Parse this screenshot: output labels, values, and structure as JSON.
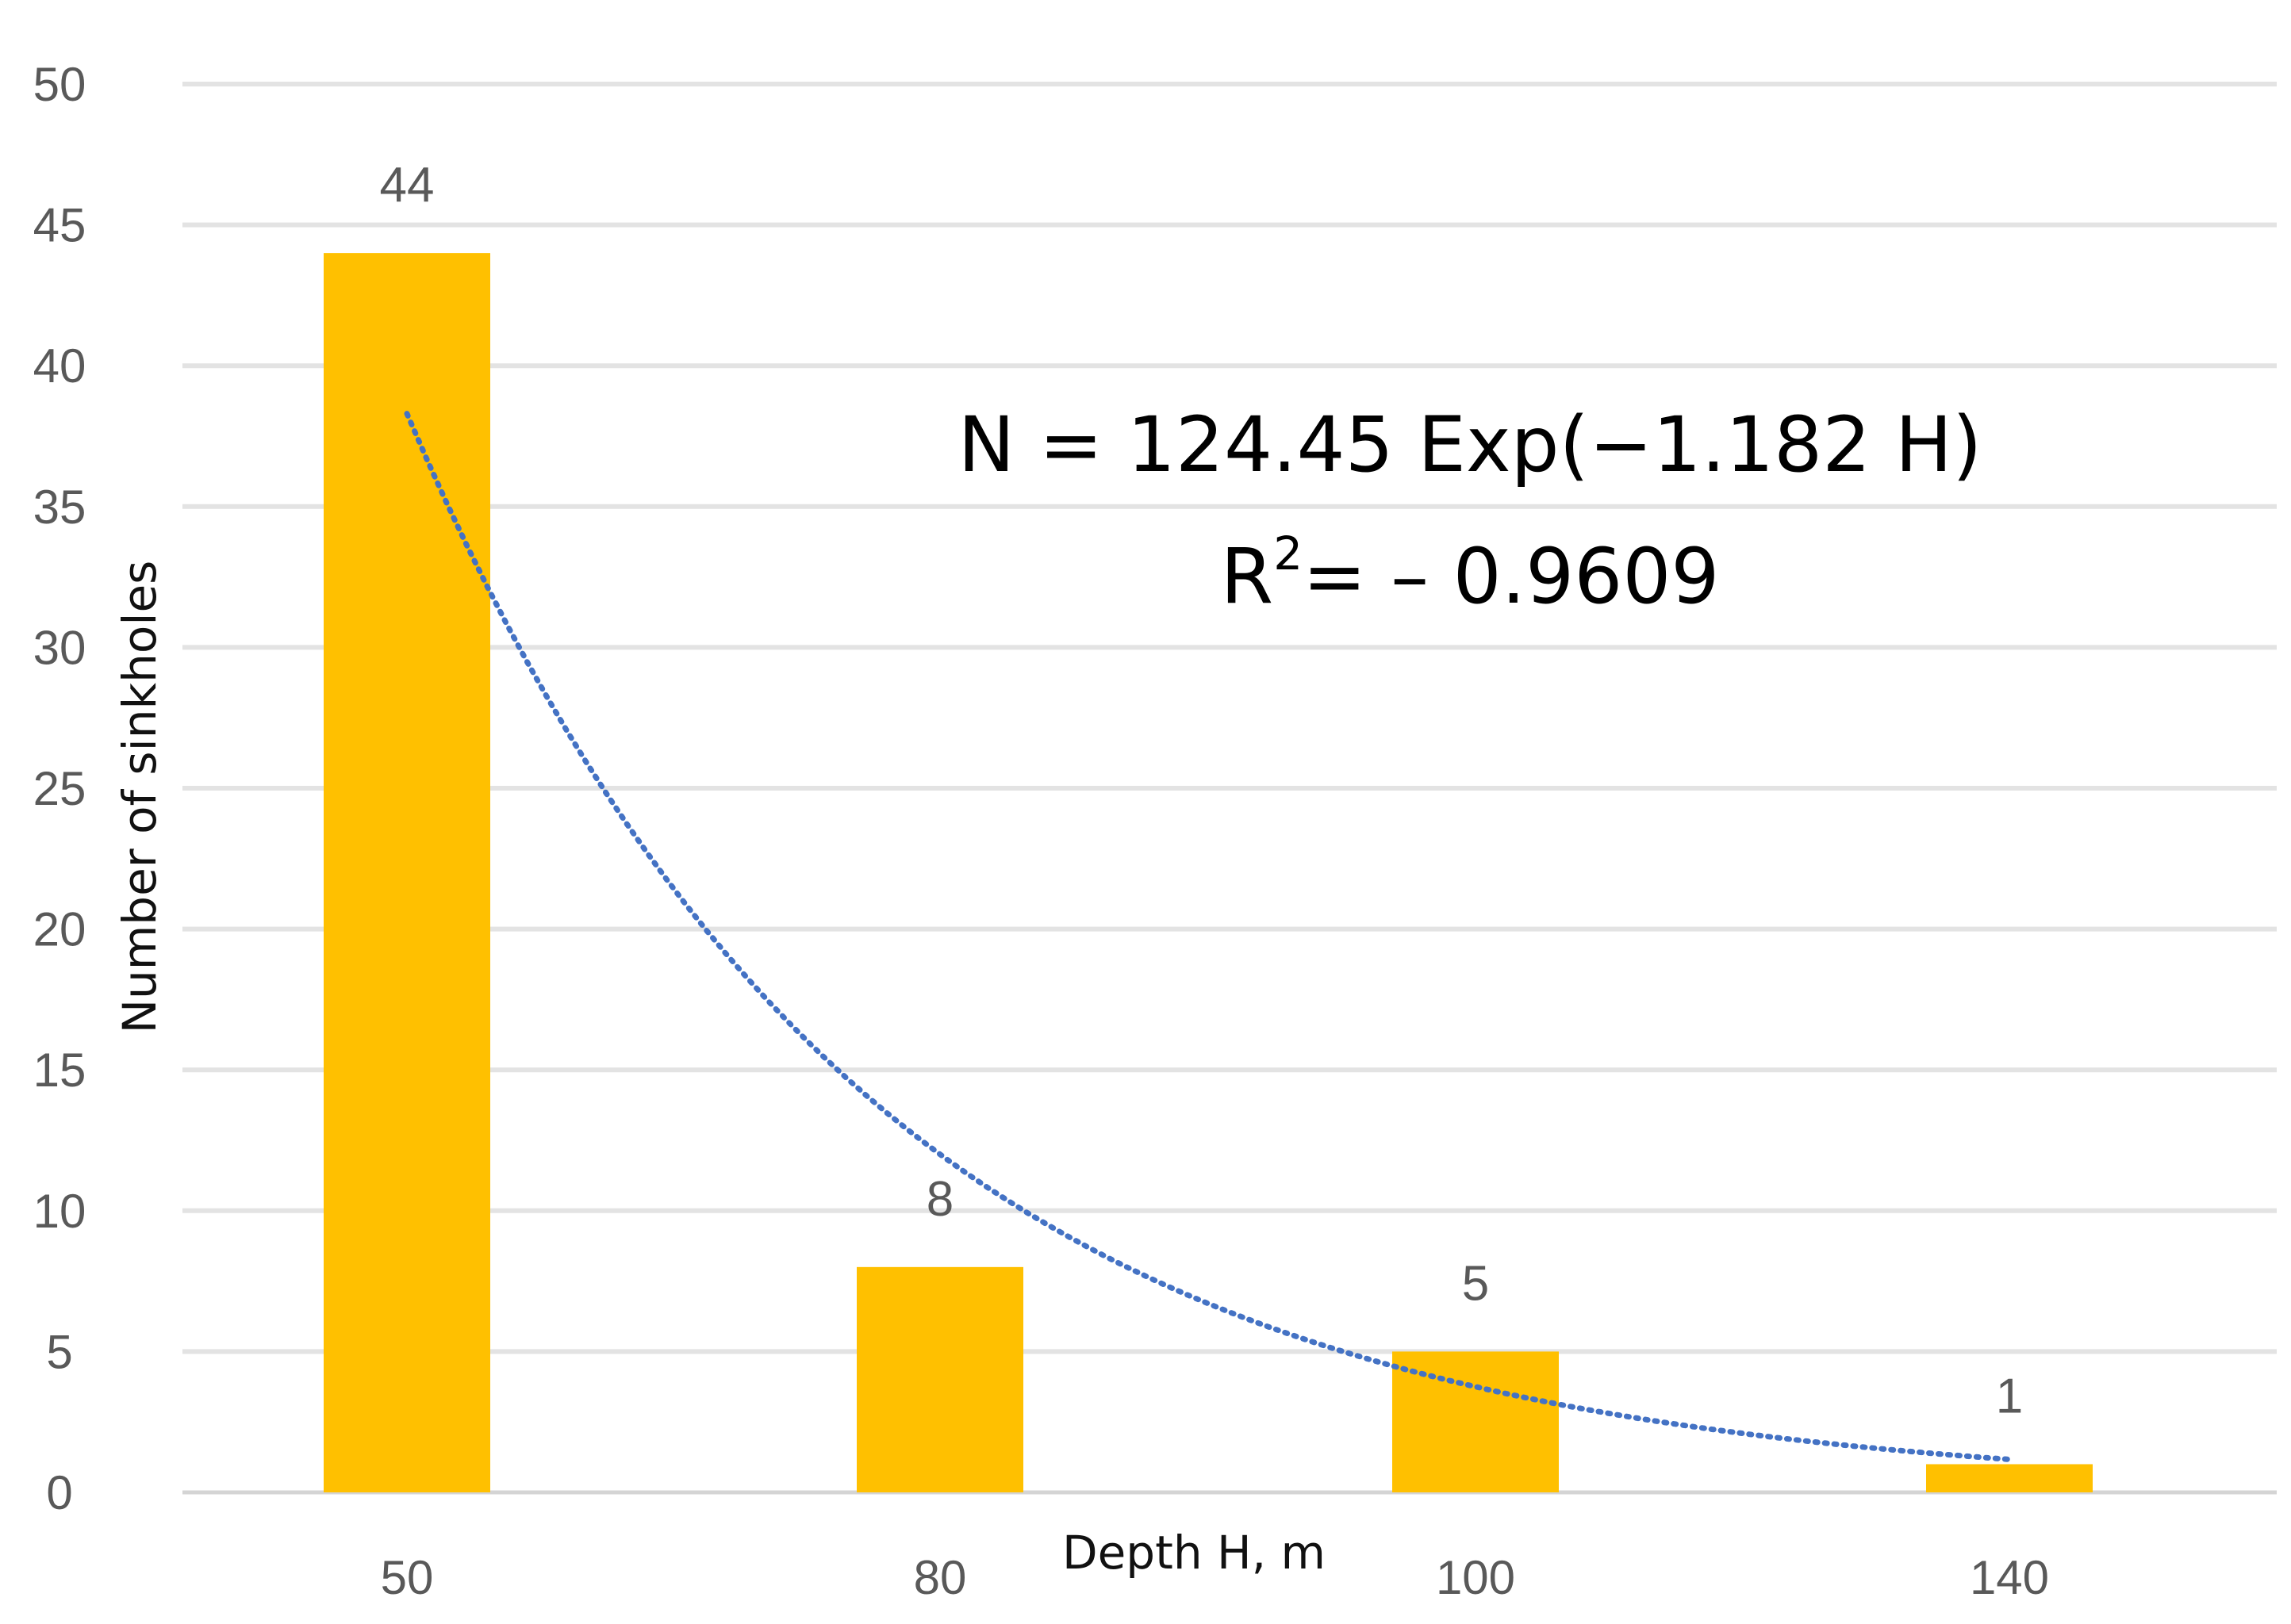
{
  "chart_data": {
    "type": "bar",
    "categories": [
      "50",
      "80",
      "100",
      "140"
    ],
    "values": [
      44,
      8,
      5,
      1
    ],
    "data_labels": [
      "44",
      "8",
      "5",
      "1"
    ],
    "title": "",
    "xlabel": "Depth H, m",
    "ylabel": "Number of sinkholes",
    "ylim": [
      0,
      50
    ],
    "yticks": [
      "0",
      "5",
      "10",
      "15",
      "20",
      "25",
      "30",
      "35",
      "40",
      "45",
      "50"
    ],
    "grid": true,
    "bar_color": "#FFC000",
    "trendline": {
      "type": "exponential",
      "style": "dotted",
      "color": "#4472C4",
      "values": [
        38.3,
        12.0,
        3.75,
        1.17
      ]
    },
    "annotations": {
      "equation": "N = 124.45 Exp(−1.182 H)",
      "r2_label": "R",
      "r2_exp": "2",
      "r2_value": "= – 0.9609"
    }
  }
}
